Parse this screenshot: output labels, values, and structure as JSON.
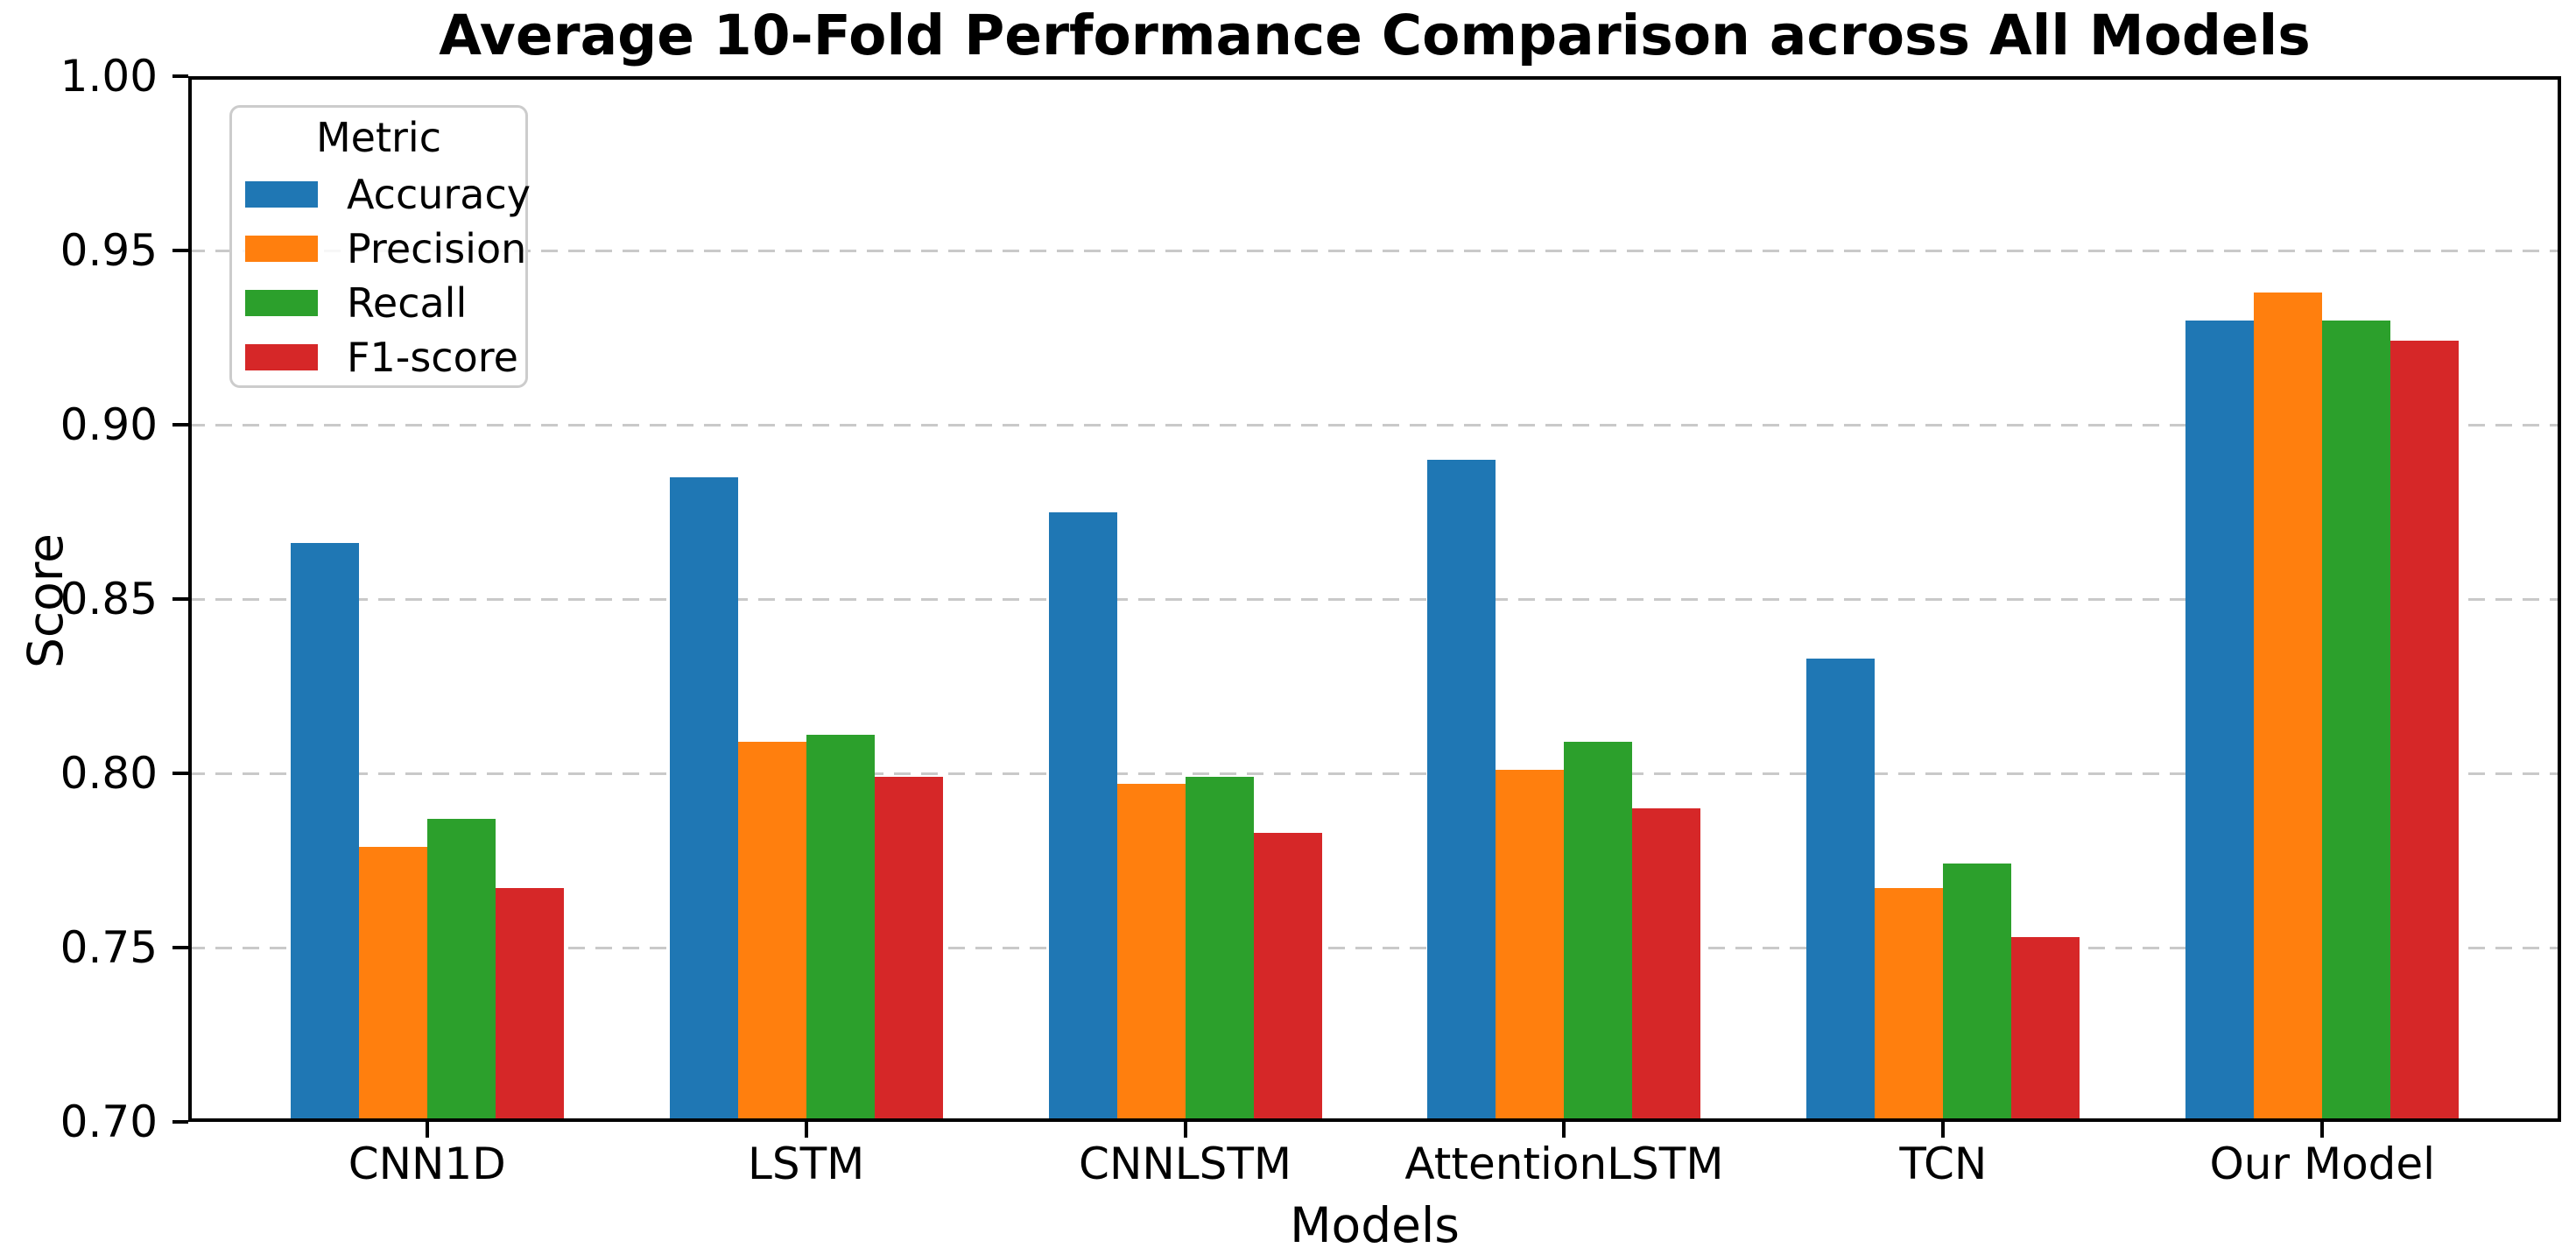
{
  "figure": {
    "title": "Average 10-Fold Performance Comparison across All Models",
    "xlabel": "Models",
    "ylabel": "Score"
  },
  "legend": {
    "title": "Metric"
  },
  "chart_data": {
    "type": "bar",
    "title": "Average 10-Fold Performance Comparison across All Models",
    "xlabel": "Models",
    "ylabel": "Score",
    "categories": [
      "CNN1D",
      "LSTM",
      "CNNLSTM",
      "AttentionLSTM",
      "TCN",
      "Our Model"
    ],
    "series": [
      {
        "name": "Accuracy",
        "color": "#1f77b4",
        "values": [
          0.866,
          0.885,
          0.875,
          0.89,
          0.833,
          0.93
        ]
      },
      {
        "name": "Precision",
        "color": "#ff7f0e",
        "values": [
          0.779,
          0.809,
          0.797,
          0.801,
          0.767,
          0.938
        ]
      },
      {
        "name": "Recall",
        "color": "#2ca02c",
        "values": [
          0.787,
          0.811,
          0.799,
          0.809,
          0.774,
          0.93
        ]
      },
      {
        "name": "F1-score",
        "color": "#d62728",
        "values": [
          0.767,
          0.799,
          0.783,
          0.79,
          0.753,
          0.924
        ]
      }
    ],
    "ylim": [
      0.7,
      1.0
    ],
    "yticks": [
      0.7,
      0.75,
      0.8,
      0.85,
      0.9,
      0.95,
      1.0
    ],
    "xlim": [
      -0.63,
      5.63
    ],
    "grid": "y dashed",
    "legend_title": "Metric",
    "legend_position": "upper left",
    "colors": {
      "grid": "#c9c9c9",
      "spine": "#000000",
      "legend_border": "#cccccc"
    }
  }
}
